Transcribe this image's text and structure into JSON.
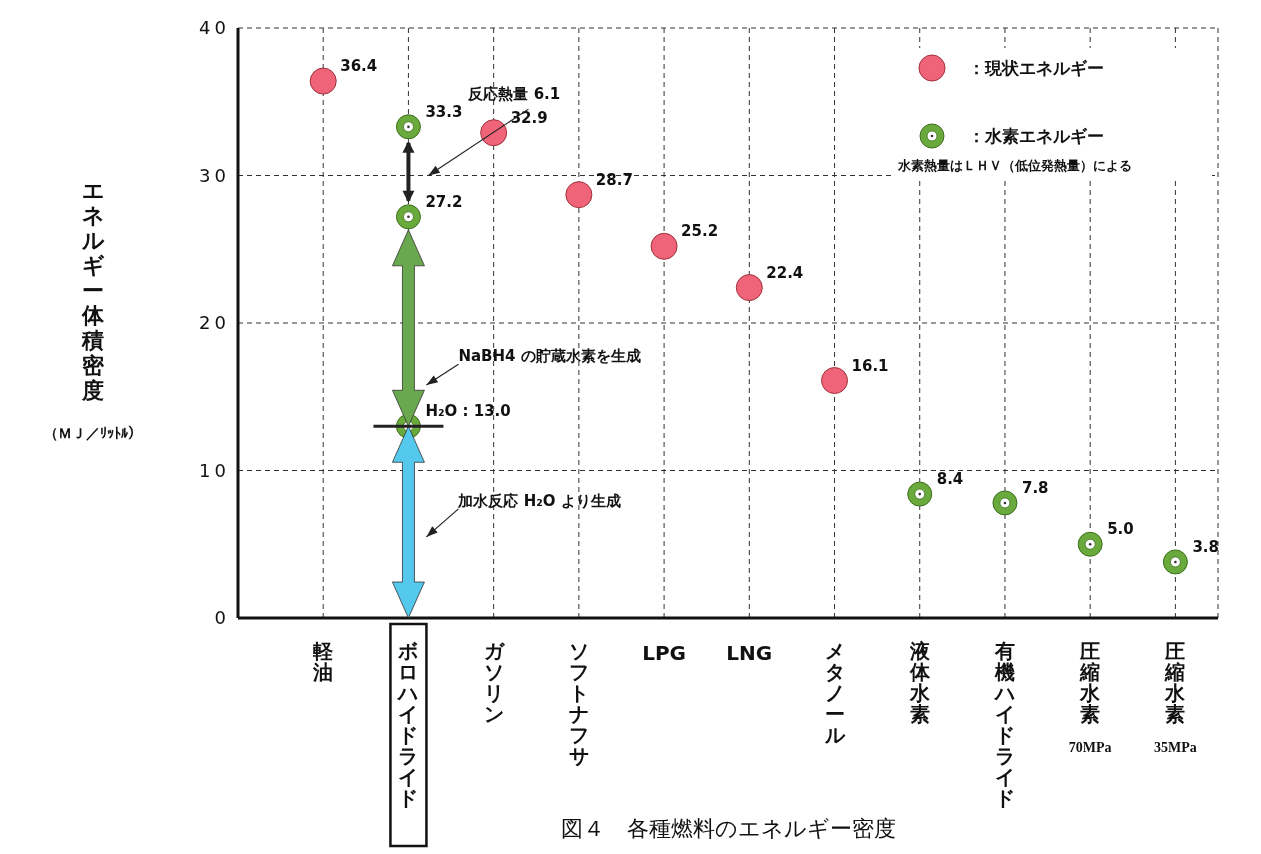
{
  "chart_data": {
    "type": "scatter",
    "title": "図４　各種燃料のエネルギー密度",
    "ylabel": "エネルギー体積密度（ＭＪ／ﾘｯﾄﾙ）",
    "categories": [
      "軽油",
      "ボロハイドライド",
      "ガソリン",
      "ソフトナフサ",
      "LPG",
      "LNG",
      "メタノール",
      "液体水素",
      "有機ハイドライド",
      "圧縮水素 70MPa",
      "圧縮水素 35MPa"
    ],
    "series": [
      {
        "name": "：現状エネルギー",
        "color": "#f0647a",
        "x": [
          "軽油",
          "ガソリン",
          "ソフトナフサ",
          "LPG",
          "LNG",
          "メタノール"
        ],
        "values": [
          36.4,
          32.9,
          28.7,
          25.2,
          22.4,
          16.1
        ],
        "value_labels": [
          "36.4",
          "32.9",
          "28.7",
          "25.2",
          "22.4",
          "16.1"
        ]
      },
      {
        "name": "：水素エネルギー",
        "color": "#6aaa3c",
        "x": [
          "ボロハイドライド",
          "ボロハイドライド",
          "ボロハイドライド",
          "液体水素",
          "有機ハイドライド",
          "圧縮水素 70MPa",
          "圧縮水素 35MPa"
        ],
        "values": [
          33.3,
          27.2,
          13.0,
          8.4,
          7.8,
          5.0,
          3.8
        ],
        "value_labels": [
          "33.3",
          "27.2",
          "H₂O : 13.0",
          "8.4",
          "7.8",
          "5.0",
          "3.8"
        ]
      }
    ],
    "ylim": [
      0,
      40
    ],
    "yticks": [
      0,
      10,
      20,
      30,
      40
    ],
    "grid": true,
    "legend": "top right",
    "annotations": [
      "反応熱量 6.1",
      "NaBH4 の貯蔵水素を生成",
      "加水反応 H₂O より生成",
      "水素熱量はＬＨＶ（低位発熱量）による"
    ]
  }
}
